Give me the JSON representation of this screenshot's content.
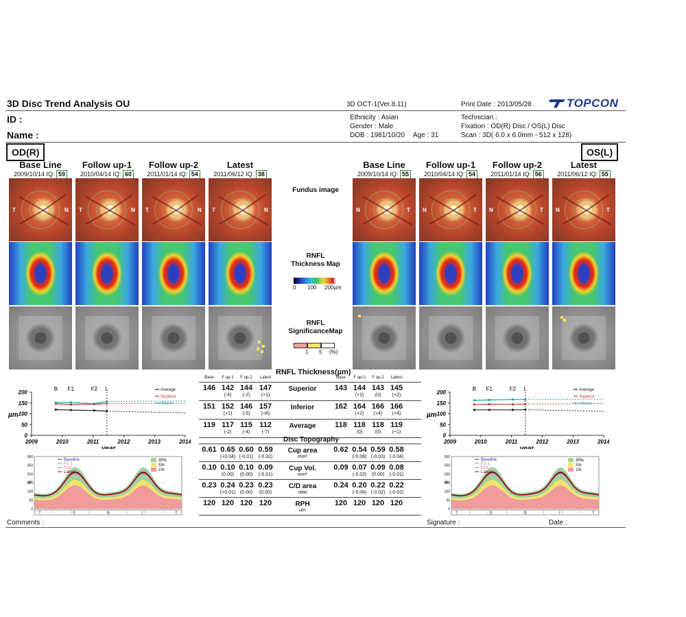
{
  "header": {
    "title": "3D Disc Trend Analysis OU",
    "device": "3D OCT-1(Ver.8.11)",
    "print_date": "Print Date : 2013/05/28",
    "brand": "TOPCON",
    "id_label": "ID :",
    "name_label": "Name :",
    "ethnicity": "Ethnicity : Asian",
    "gender": "Gender : Male",
    "dob": "DOB : 1981/10/20",
    "age": "Age : 31",
    "technician": "Technician :",
    "fixation": "Fixation : OD(R) Disc / OS(L) Disc",
    "scan": "Scan : 3D( 6.0 x 6.0mm - 512 x 128)"
  },
  "od": {
    "label": "OD(R)",
    "columns": [
      {
        "title": "Base Line",
        "date": "2009/10/14",
        "iq_label": "IQ:",
        "iq": "59"
      },
      {
        "title": "Follow up-1",
        "date": "2010/04/14",
        "iq_label": "IQ:",
        "iq": "60"
      },
      {
        "title": "Follow up-2",
        "date": "2011/01/14",
        "iq_label": "IQ:",
        "iq": "54"
      },
      {
        "title": "Latest",
        "date": "2011/06/12",
        "iq_label": "IQ:",
        "iq": "38"
      }
    ]
  },
  "os": {
    "label": "OS(L)",
    "columns": [
      {
        "title": "Base Line",
        "date": "2009/10/14",
        "iq_label": "IQ:",
        "iq": "55"
      },
      {
        "title": "Follow up-1",
        "date": "2010/04/14",
        "iq_label": "IQ:",
        "iq": "54"
      },
      {
        "title": "Follow up-2",
        "date": "2011/01/14",
        "iq_label": "IQ:",
        "iq": "56"
      },
      {
        "title": "Latest",
        "date": "2011/06/12",
        "iq_label": "IQ:",
        "iq": "55"
      }
    ]
  },
  "fundus_T": "T",
  "fundus_N": "N",
  "center_labels": {
    "fundus": "Fundus image",
    "rnfl_map_1": "RNFL",
    "rnfl_map_2": "Thickness Map",
    "scale_0": "0",
    "scale_100": "100",
    "scale_200": "200µm",
    "sig_1": "RNFL",
    "sig_2": "SignificanceMap",
    "sig_scale_1": "1",
    "sig_scale_5": "5",
    "sig_scale_pct": "(%)"
  },
  "colors": {
    "superior": "#c0392b",
    "inferior": "#1aa3a3",
    "average": "#222222",
    "pct95": "#9fd39a",
    "pct5": "#f3e36a",
    "pct1": "#f19b9b",
    "iq_border": "#2e8b2e"
  },
  "thickness_title": "RNFL Thickness(µm)",
  "col_headers": [
    "Base",
    "F up-1",
    "F up-2",
    "Latest"
  ],
  "thickness_rows": [
    {
      "label": "Superior",
      "od": [
        "146",
        "142",
        "144",
        "147"
      ],
      "od_d": [
        "",
        "(-4)",
        "(-2)",
        "(+1)"
      ],
      "os": [
        "143",
        "144",
        "143",
        "145"
      ],
      "os_d": [
        "",
        "(+1)",
        "(0)",
        "(+2)"
      ]
    },
    {
      "label": "Inferior",
      "od": [
        "151",
        "152",
        "146",
        "157"
      ],
      "od_d": [
        "",
        "(+1)",
        "(-5)",
        "(+6)"
      ],
      "os": [
        "162",
        "164",
        "166",
        "166"
      ],
      "os_d": [
        "",
        "(+2)",
        "(+4)",
        "(+4)"
      ]
    },
    {
      "label": "Average",
      "od": [
        "119",
        "117",
        "115",
        "112"
      ],
      "od_d": [
        "",
        "(-2)",
        "(-4)",
        "(-7)"
      ],
      "os": [
        "118",
        "118",
        "118",
        "119"
      ],
      "os_d": [
        "",
        "(0)",
        "(0)",
        "(+1)"
      ]
    }
  ],
  "topo_title": "Disc Topography",
  "topo_rows": [
    {
      "label": "Cup area",
      "unit": "mm²",
      "od": [
        "0.61",
        "0.65",
        "0.60",
        "0.59"
      ],
      "od_d": [
        "",
        "(+0.04)",
        "(-0.01)",
        "(-0.02)"
      ],
      "os": [
        "0.62",
        "0.54",
        "0.59",
        "0.58"
      ],
      "os_d": [
        "",
        "(-0.08)",
        "(-0.03)",
        "(-0.04)"
      ]
    },
    {
      "label": "Cup Vol.",
      "unit": "mm³",
      "od": [
        "0.10",
        "0.10",
        "0.10",
        "0.09"
      ],
      "od_d": [
        "",
        "(0.00)",
        "(0.00)",
        "(-0.01)"
      ],
      "os": [
        "0.09",
        "0.07",
        "0.09",
        "0.08"
      ],
      "os_d": [
        "",
        "(-0.02)",
        "(0.00)",
        "(-0.01)"
      ]
    },
    {
      "label": "C/D area",
      "unit": "ratio",
      "od": [
        "0.23",
        "0.24",
        "0.23",
        "0.23"
      ],
      "od_d": [
        "",
        "(+0.01)",
        "(0.00)",
        "(0.00)"
      ],
      "os": [
        "0.24",
        "0.20",
        "0.22",
        "0.22"
      ],
      "os_d": [
        "",
        "(-0.04)",
        "(-0.02)",
        "(-0.02)"
      ]
    },
    {
      "label": "RPH",
      "unit": "um",
      "od": [
        "120",
        "120",
        "120",
        "120"
      ],
      "od_d": [
        "",
        "",
        "",
        ""
      ],
      "os": [
        "120",
        "120",
        "120",
        "120"
      ],
      "os_d": [
        "",
        "",
        "",
        ""
      ]
    }
  ],
  "trend": {
    "marks": [
      "B",
      "F1",
      "F2",
      "L"
    ],
    "legend": [
      "Average",
      "Superior",
      "Inferior"
    ],
    "ylabel": "µm",
    "xlabel": "year",
    "yticks": [
      "200",
      "150",
      "100",
      "50",
      "0"
    ],
    "xticks": [
      "2009",
      "2010",
      "2011",
      "2012",
      "2013",
      "2014"
    ]
  },
  "profile": {
    "legend": [
      "Baseline",
      "FU 1",
      "FU2",
      "Latest"
    ],
    "pct": [
      "95%",
      "5%",
      "1%"
    ],
    "yticks": [
      "300",
      "250",
      "200",
      "150",
      "100",
      "50",
      "0"
    ],
    "ylabel": "µm",
    "sectors": [
      "T",
      "S",
      "N",
      "I",
      "T"
    ]
  },
  "chart_data": [
    {
      "type": "line",
      "title": "",
      "xlabel": "year",
      "ylabel": "µm",
      "ylim": [
        0,
        200
      ],
      "xlim": [
        2009,
        2014
      ],
      "x": [
        2009.79,
        2010.28,
        2011.04,
        2011.45
      ],
      "series": [
        {
          "name": "Superior",
          "values": [
            146,
            142,
            144,
            147
          ]
        },
        {
          "name": "Inferior",
          "values": [
            151,
            152,
            146,
            157
          ]
        },
        {
          "name": "Average",
          "values": [
            119,
            117,
            115,
            112
          ]
        }
      ]
    },
    {
      "type": "line",
      "title": "",
      "xlabel": "year",
      "ylabel": "µm",
      "ylim": [
        0,
        200
      ],
      "xlim": [
        2009,
        2014
      ],
      "x": [
        2009.79,
        2010.28,
        2011.04,
        2011.45
      ],
      "series": [
        {
          "name": "Superior",
          "values": [
            143,
            144,
            143,
            145
          ]
        },
        {
          "name": "Inferior",
          "values": [
            162,
            164,
            166,
            166
          ]
        },
        {
          "name": "Average",
          "values": [
            118,
            118,
            118,
            119
          ]
        }
      ]
    }
  ],
  "footer": {
    "comments": "Comments :",
    "signature": "Signature :",
    "date": "Date :"
  }
}
